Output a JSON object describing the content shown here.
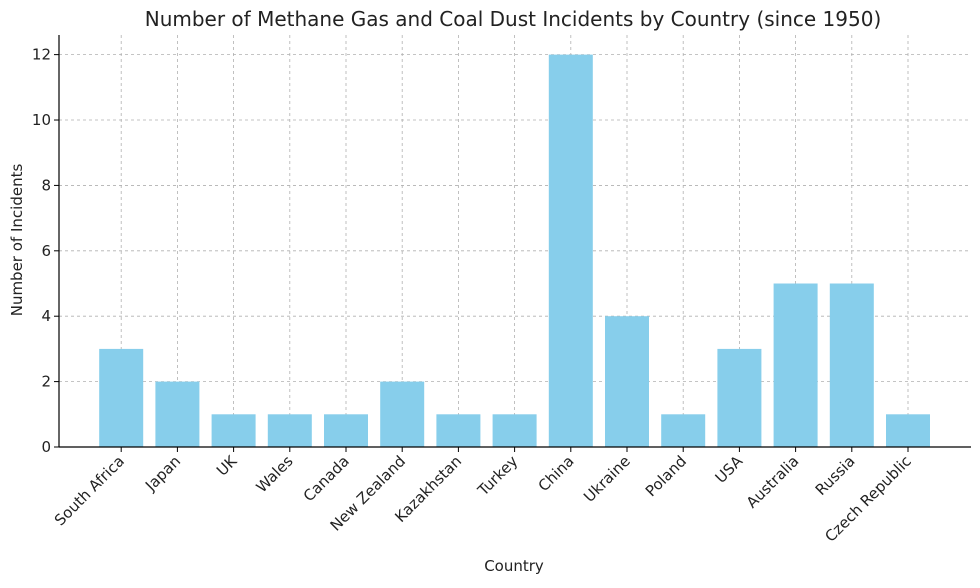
{
  "chart_data": {
    "type": "bar",
    "title": "Number of Methane Gas and Coal Dust Incidents by Country (since 1950)",
    "xlabel": "Country",
    "ylabel": "Number of Incidents",
    "categories": [
      "South Africa",
      "Japan",
      "UK",
      "Wales",
      "Canada",
      "New Zealand",
      "Kazakhstan",
      "Turkey",
      "China",
      "Ukraine",
      "Poland",
      "USA",
      "Australia",
      "Russia",
      "Czech Republic"
    ],
    "values": [
      3,
      2,
      1,
      1,
      1,
      2,
      1,
      1,
      12,
      4,
      1,
      3,
      5,
      5,
      1
    ],
    "ylim": [
      0,
      12.6
    ],
    "yticks": [
      0,
      2,
      4,
      6,
      8,
      10,
      12
    ],
    "grid": true,
    "legend": "none",
    "colors": {
      "bar": "#87ceeb",
      "grid": "#b0b0b0",
      "axis": "#000000"
    }
  }
}
